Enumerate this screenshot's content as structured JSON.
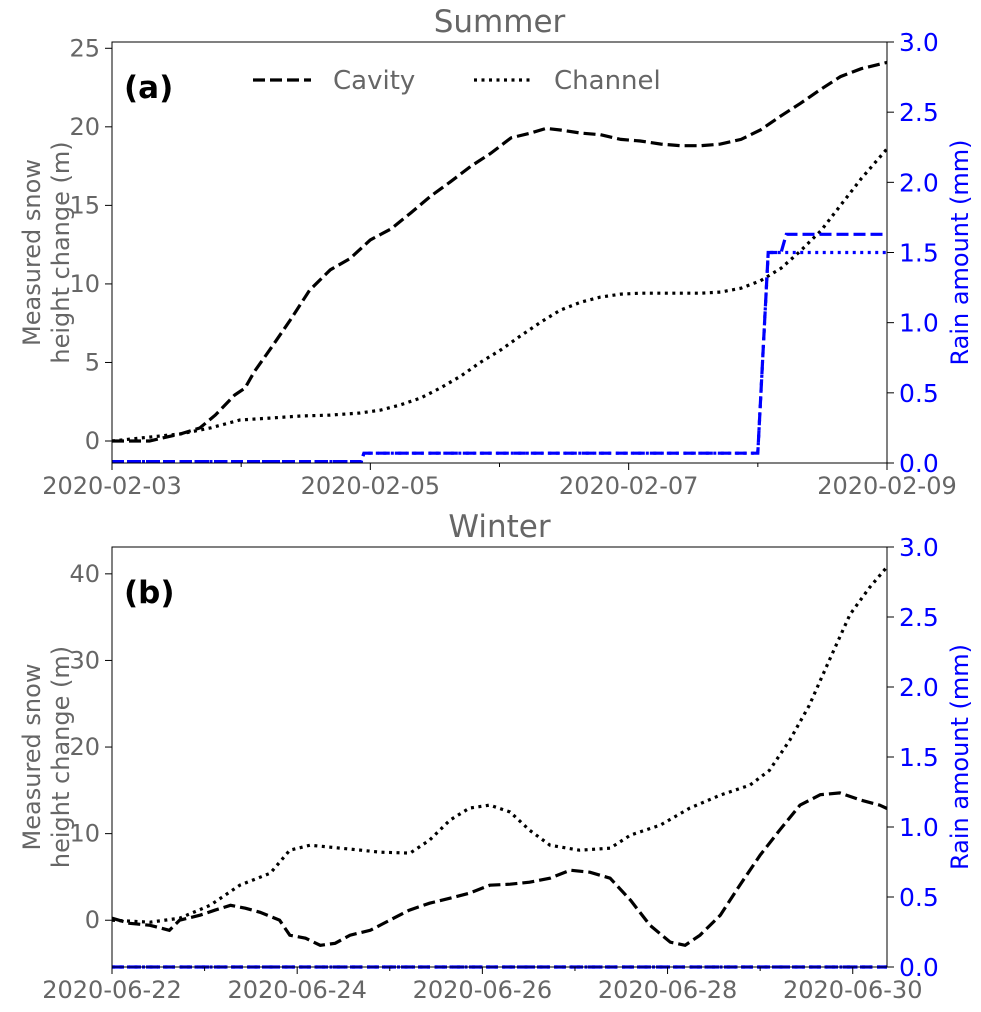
{
  "chart_data": [
    {
      "type": "line",
      "title": "Summer",
      "panel_label": "(a)",
      "x_start_date": "2020-02-03",
      "xlim_days": [
        0,
        6
      ],
      "xticks": [
        {
          "day": 0,
          "label": "2020-02-03"
        },
        {
          "day": 2,
          "label": "2020-02-05"
        },
        {
          "day": 4,
          "label": "2020-02-07"
        },
        {
          "day": 6,
          "label": "2020-02-09"
        }
      ],
      "x_minor_ticks_days": [
        1,
        3,
        5
      ],
      "ylabel": "Measured snow\nheight change (m)",
      "ylim": [
        -1.4,
        25.4
      ],
      "yticks": [
        0,
        5,
        10,
        15,
        20,
        25
      ],
      "y2label": "Rain amount (mm)",
      "y2lim": [
        0,
        3.0
      ],
      "y2ticks": [
        "0.0",
        "0.5",
        "1.0",
        "1.5",
        "2.0",
        "2.5",
        "3.0"
      ],
      "legend": {
        "placement": "top-center",
        "entries": [
          "Cavity",
          "Channel"
        ]
      },
      "series": [
        {
          "name": "Cavity",
          "axis": "left",
          "style": "dashed",
          "color": "#000000",
          "x": [
            0,
            0.29,
            0.53,
            0.68,
            0.8,
            0.95,
            1.03,
            1.1,
            1.22,
            1.38,
            1.53,
            1.69,
            1.84,
            2.0,
            2.16,
            2.31,
            2.47,
            2.62,
            2.78,
            2.93,
            3.09,
            3.24,
            3.36,
            3.47,
            3.63,
            3.78,
            3.94,
            4.09,
            4.25,
            4.4,
            4.56,
            4.71,
            4.87,
            5.02,
            5.18,
            5.33,
            5.49,
            5.64,
            5.8,
            6.0
          ],
          "y": [
            0,
            0,
            0.45,
            0.83,
            1.65,
            2.93,
            3.37,
            4.39,
            5.79,
            7.7,
            9.6,
            10.9,
            11.6,
            12.8,
            13.5,
            14.5,
            15.6,
            16.5,
            17.5,
            18.3,
            19.3,
            19.6,
            19.9,
            19.8,
            19.6,
            19.5,
            19.2,
            19.1,
            18.9,
            18.8,
            18.8,
            18.9,
            19.2,
            19.8,
            20.7,
            21.5,
            22.4,
            23.2,
            23.7,
            24.1
          ]
        },
        {
          "name": "Channel",
          "axis": "left",
          "style": "dotted",
          "color": "#000000",
          "x": [
            0,
            0.29,
            0.53,
            0.76,
            0.99,
            1.22,
            1.46,
            1.69,
            1.92,
            2.08,
            2.23,
            2.39,
            2.54,
            2.7,
            2.85,
            3.01,
            3.16,
            3.32,
            3.47,
            3.63,
            3.78,
            3.94,
            4.09,
            4.25,
            4.56,
            4.71,
            4.87,
            5.02,
            5.18,
            5.33,
            5.49,
            5.64,
            5.8,
            6.0
          ],
          "y": [
            0,
            0.25,
            0.45,
            0.83,
            1.34,
            1.46,
            1.59,
            1.65,
            1.78,
            1.97,
            2.29,
            2.74,
            3.37,
            4.13,
            5.0,
            5.8,
            6.68,
            7.57,
            8.33,
            8.84,
            9.16,
            9.35,
            9.41,
            9.41,
            9.41,
            9.48,
            9.73,
            10.2,
            11.0,
            12.1,
            13.4,
            15.0,
            16.7,
            18.6
          ]
        },
        {
          "name": "Cavity rain",
          "axis": "right",
          "style": "dashed",
          "color": "#0000ff",
          "x": [
            0,
            1.93,
            1.95,
            5.0,
            5.08,
            5.18,
            5.22,
            6.0
          ],
          "y": [
            0.01,
            0.01,
            0.07,
            0.07,
            1.5,
            1.5,
            1.63,
            1.63
          ]
        },
        {
          "name": "Channel rain",
          "axis": "right",
          "style": "dotted",
          "color": "#0000ff",
          "x": [
            0,
            1.93,
            1.95,
            5.0,
            5.08,
            6.0
          ],
          "y": [
            0.01,
            0.01,
            0.07,
            0.07,
            1.5,
            1.5
          ]
        }
      ]
    },
    {
      "type": "line",
      "title": "Winter",
      "panel_label": "(b)",
      "x_start_date": "2020-06-22",
      "xlim_days": [
        0,
        8.37
      ],
      "xticks": [
        {
          "day": 0,
          "label": "2020-06-22"
        },
        {
          "day": 2,
          "label": "2020-06-24"
        },
        {
          "day": 4,
          "label": "2020-06-26"
        },
        {
          "day": 6,
          "label": "2020-06-28"
        },
        {
          "day": 8,
          "label": "2020-06-30"
        }
      ],
      "x_minor_ticks_days": [
        1,
        3,
        5,
        7
      ],
      "ylabel": "Measured snow\nheight change (m)",
      "ylim": [
        -5.4,
        43.1
      ],
      "yticks": [
        0,
        10,
        20,
        30,
        40
      ],
      "y2label": "Rain amount (mm)",
      "y2lim": [
        0,
        3.0
      ],
      "y2ticks": [
        "0.0",
        "0.5",
        "1.0",
        "1.5",
        "2.0",
        "2.5",
        "3.0"
      ],
      "series": [
        {
          "name": "Cavity",
          "axis": "left",
          "style": "dashed",
          "color": "#000000",
          "x": [
            0,
            0.19,
            0.41,
            0.62,
            0.73,
            0.95,
            1.11,
            1.28,
            1.44,
            1.6,
            1.81,
            1.92,
            2.09,
            2.25,
            2.41,
            2.57,
            2.79,
            3.0,
            3.21,
            3.43,
            3.65,
            3.86,
            4.08,
            4.3,
            4.51,
            4.73,
            4.95,
            5.16,
            5.38,
            5.6,
            5.81,
            6.03,
            6.19,
            6.35,
            6.57,
            6.78,
            7.0,
            7.21,
            7.43,
            7.65,
            7.86,
            8.08,
            8.29,
            8.37
          ],
          "y": [
            0.23,
            -0.35,
            -0.58,
            -1.16,
            0,
            0.58,
            1.16,
            1.73,
            1.39,
            0.92,
            0,
            -1.73,
            -2.08,
            -2.89,
            -2.66,
            -1.73,
            -1.16,
            0,
            1.16,
            1.97,
            2.54,
            3.12,
            4.05,
            4.16,
            4.39,
            4.86,
            5.78,
            5.55,
            4.86,
            2.31,
            -0.58,
            -2.54,
            -2.89,
            -1.73,
            0.58,
            4.05,
            7.51,
            10.4,
            13.3,
            14.5,
            14.7,
            13.9,
            13.3,
            12.9
          ]
        },
        {
          "name": "Channel",
          "axis": "left",
          "style": "dotted",
          "color": "#000000",
          "x": [
            0,
            0.41,
            0.73,
            1.06,
            1.38,
            1.71,
            1.92,
            2.14,
            2.57,
            2.9,
            3.22,
            3.43,
            3.65,
            3.86,
            4.08,
            4.3,
            4.51,
            4.73,
            5.05,
            5.38,
            5.6,
            5.92,
            6.24,
            6.57,
            6.89,
            7.1,
            7.32,
            7.53,
            7.75,
            7.97,
            8.18,
            8.37
          ],
          "y": [
            0,
            -0.23,
            0.23,
            1.73,
            4.05,
            5.43,
            8.09,
            8.67,
            8.21,
            7.86,
            7.75,
            9.25,
            11.56,
            12.95,
            13.3,
            12.5,
            10.4,
            8.67,
            8.09,
            8.32,
            9.83,
            10.98,
            12.95,
            14.45,
            15.6,
            17.3,
            20.8,
            24.8,
            30.1,
            35.3,
            38.4,
            40.8
          ]
        },
        {
          "name": "Cavity rain",
          "axis": "right",
          "style": "dashed",
          "color": "#0000ff",
          "x": [
            0,
            8.37
          ],
          "y": [
            0,
            0
          ]
        },
        {
          "name": "Channel rain",
          "axis": "right",
          "style": "dotted",
          "color": "#0000ff",
          "x": [
            0,
            8.37
          ],
          "y": [
            0,
            0
          ]
        }
      ]
    }
  ]
}
